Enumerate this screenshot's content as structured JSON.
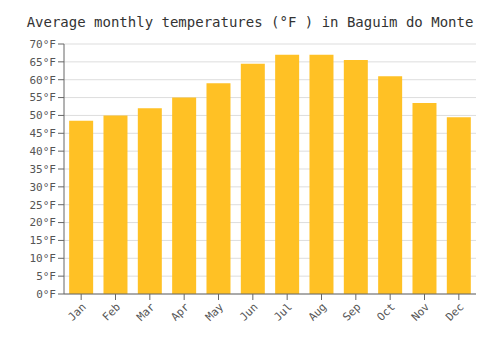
{
  "chart_data": {
    "type": "bar",
    "title": "Average monthly temperatures (°F ) in Baguim do Monte",
    "categories": [
      "Jan",
      "Feb",
      "Mar",
      "Apr",
      "May",
      "Jun",
      "Jul",
      "Aug",
      "Sep",
      "Oct",
      "Nov",
      "Dec"
    ],
    "values": [
      48.5,
      50.0,
      52.0,
      55.0,
      59.0,
      64.5,
      67.0,
      67.0,
      65.5,
      61.0,
      53.5,
      49.5
    ],
    "color": "#FFC125",
    "ylim": [
      0,
      70
    ],
    "yticks": [
      {
        "value": 0,
        "label": "0°F"
      },
      {
        "value": 5,
        "label": "5°F"
      },
      {
        "value": 10,
        "label": "10°F"
      },
      {
        "value": 15,
        "label": "15°F"
      },
      {
        "value": 20,
        "label": "20°F"
      },
      {
        "value": 25,
        "label": "25°F"
      },
      {
        "value": 30,
        "label": "30°F"
      },
      {
        "value": 35,
        "label": "35°F"
      },
      {
        "value": 40,
        "label": "40°F"
      },
      {
        "value": 45,
        "label": "45°F"
      },
      {
        "value": 50,
        "label": "50°F"
      },
      {
        "value": 55,
        "label": "55°F"
      },
      {
        "value": 60,
        "label": "60°F"
      },
      {
        "value": 65,
        "label": "65°F"
      },
      {
        "value": 70,
        "label": "70°F"
      }
    ],
    "grid": true
  }
}
